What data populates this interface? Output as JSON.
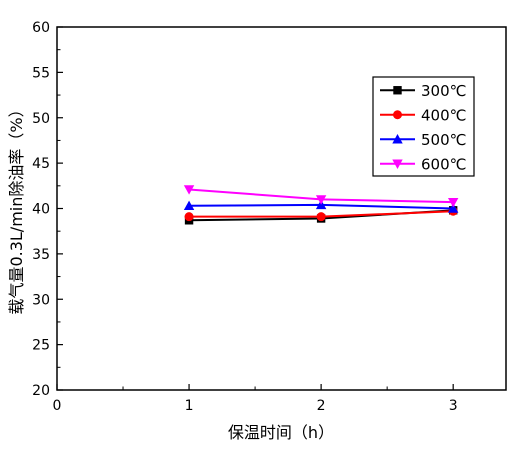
{
  "chart_data": {
    "type": "line",
    "title": "",
    "xlabel": "保温时间（h）",
    "ylabel": "载气量0.3L/min除油率（%）",
    "x": [
      1,
      2,
      3
    ],
    "xlim": [
      0,
      3.4
    ],
    "ylim": [
      20,
      60
    ],
    "xticks": [
      0,
      1,
      2,
      3
    ],
    "yticks": [
      20,
      25,
      30,
      35,
      40,
      45,
      50,
      55,
      60
    ],
    "grid": false,
    "legend_position": "top-right",
    "series": [
      {
        "name": "300℃",
        "color": "#000000",
        "marker": "square",
        "values": [
          38.7,
          38.9,
          39.8
        ]
      },
      {
        "name": "400℃",
        "color": "#ff0000",
        "marker": "circle",
        "values": [
          39.1,
          39.1,
          39.7
        ]
      },
      {
        "name": "500℃",
        "color": "#0000ff",
        "marker": "triangle-up",
        "values": [
          40.3,
          40.4,
          40.0
        ]
      },
      {
        "name": "600℃",
        "color": "#ff00ff",
        "marker": "triangle-down",
        "values": [
          42.1,
          41.0,
          40.7
        ]
      }
    ]
  }
}
